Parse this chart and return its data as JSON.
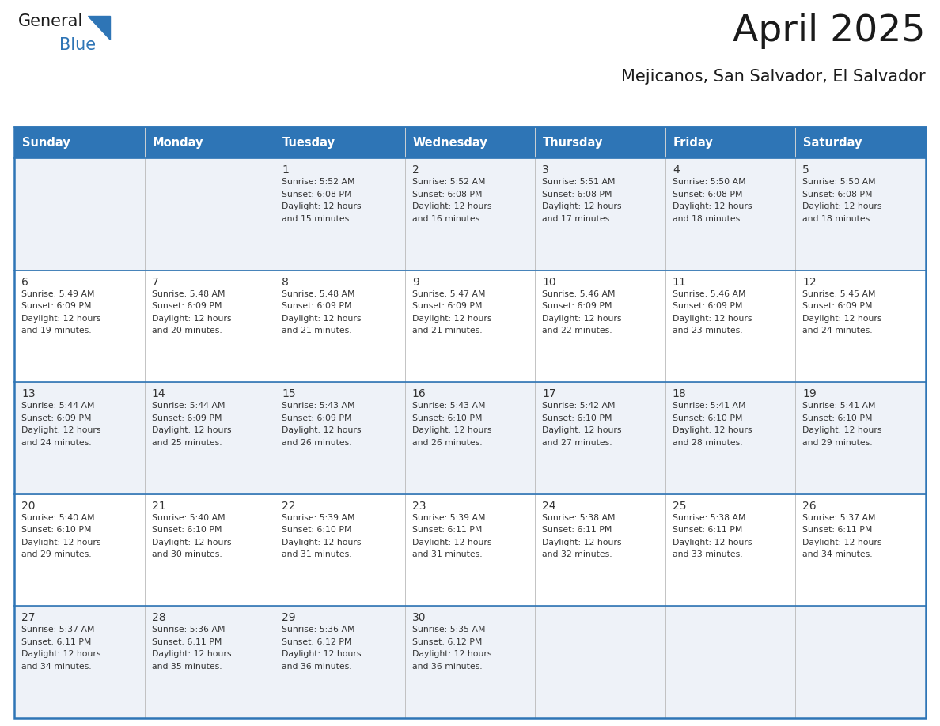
{
  "title": "April 2025",
  "subtitle": "Mejicanos, San Salvador, El Salvador",
  "days_of_week": [
    "Sunday",
    "Monday",
    "Tuesday",
    "Wednesday",
    "Thursday",
    "Friday",
    "Saturday"
  ],
  "header_bg": "#2E75B6",
  "header_text": "#FFFFFF",
  "row_bg_odd": "#EEF2F8",
  "row_bg_even": "#FFFFFF",
  "border_color": "#2E75B6",
  "cell_border_color": "#BBBBBB",
  "text_color": "#333333",
  "logo_blue_color": "#2E75B6",
  "calendar": [
    [
      {
        "day": 0,
        "sunrise": "",
        "sunset": "",
        "daylight": ""
      },
      {
        "day": 0,
        "sunrise": "",
        "sunset": "",
        "daylight": ""
      },
      {
        "day": 1,
        "sunrise": "5:52 AM",
        "sunset": "6:08 PM",
        "daylight": "12 hours\nand 15 minutes."
      },
      {
        "day": 2,
        "sunrise": "5:52 AM",
        "sunset": "6:08 PM",
        "daylight": "12 hours\nand 16 minutes."
      },
      {
        "day": 3,
        "sunrise": "5:51 AM",
        "sunset": "6:08 PM",
        "daylight": "12 hours\nand 17 minutes."
      },
      {
        "day": 4,
        "sunrise": "5:50 AM",
        "sunset": "6:08 PM",
        "daylight": "12 hours\nand 18 minutes."
      },
      {
        "day": 5,
        "sunrise": "5:50 AM",
        "sunset": "6:08 PM",
        "daylight": "12 hours\nand 18 minutes."
      }
    ],
    [
      {
        "day": 6,
        "sunrise": "5:49 AM",
        "sunset": "6:09 PM",
        "daylight": "12 hours\nand 19 minutes."
      },
      {
        "day": 7,
        "sunrise": "5:48 AM",
        "sunset": "6:09 PM",
        "daylight": "12 hours\nand 20 minutes."
      },
      {
        "day": 8,
        "sunrise": "5:48 AM",
        "sunset": "6:09 PM",
        "daylight": "12 hours\nand 21 minutes."
      },
      {
        "day": 9,
        "sunrise": "5:47 AM",
        "sunset": "6:09 PM",
        "daylight": "12 hours\nand 21 minutes."
      },
      {
        "day": 10,
        "sunrise": "5:46 AM",
        "sunset": "6:09 PM",
        "daylight": "12 hours\nand 22 minutes."
      },
      {
        "day": 11,
        "sunrise": "5:46 AM",
        "sunset": "6:09 PM",
        "daylight": "12 hours\nand 23 minutes."
      },
      {
        "day": 12,
        "sunrise": "5:45 AM",
        "sunset": "6:09 PM",
        "daylight": "12 hours\nand 24 minutes."
      }
    ],
    [
      {
        "day": 13,
        "sunrise": "5:44 AM",
        "sunset": "6:09 PM",
        "daylight": "12 hours\nand 24 minutes."
      },
      {
        "day": 14,
        "sunrise": "5:44 AM",
        "sunset": "6:09 PM",
        "daylight": "12 hours\nand 25 minutes."
      },
      {
        "day": 15,
        "sunrise": "5:43 AM",
        "sunset": "6:09 PM",
        "daylight": "12 hours\nand 26 minutes."
      },
      {
        "day": 16,
        "sunrise": "5:43 AM",
        "sunset": "6:10 PM",
        "daylight": "12 hours\nand 26 minutes."
      },
      {
        "day": 17,
        "sunrise": "5:42 AM",
        "sunset": "6:10 PM",
        "daylight": "12 hours\nand 27 minutes."
      },
      {
        "day": 18,
        "sunrise": "5:41 AM",
        "sunset": "6:10 PM",
        "daylight": "12 hours\nand 28 minutes."
      },
      {
        "day": 19,
        "sunrise": "5:41 AM",
        "sunset": "6:10 PM",
        "daylight": "12 hours\nand 29 minutes."
      }
    ],
    [
      {
        "day": 20,
        "sunrise": "5:40 AM",
        "sunset": "6:10 PM",
        "daylight": "12 hours\nand 29 minutes."
      },
      {
        "day": 21,
        "sunrise": "5:40 AM",
        "sunset": "6:10 PM",
        "daylight": "12 hours\nand 30 minutes."
      },
      {
        "day": 22,
        "sunrise": "5:39 AM",
        "sunset": "6:10 PM",
        "daylight": "12 hours\nand 31 minutes."
      },
      {
        "day": 23,
        "sunrise": "5:39 AM",
        "sunset": "6:11 PM",
        "daylight": "12 hours\nand 31 minutes."
      },
      {
        "day": 24,
        "sunrise": "5:38 AM",
        "sunset": "6:11 PM",
        "daylight": "12 hours\nand 32 minutes."
      },
      {
        "day": 25,
        "sunrise": "5:38 AM",
        "sunset": "6:11 PM",
        "daylight": "12 hours\nand 33 minutes."
      },
      {
        "day": 26,
        "sunrise": "5:37 AM",
        "sunset": "6:11 PM",
        "daylight": "12 hours\nand 34 minutes."
      }
    ],
    [
      {
        "day": 27,
        "sunrise": "5:37 AM",
        "sunset": "6:11 PM",
        "daylight": "12 hours\nand 34 minutes."
      },
      {
        "day": 28,
        "sunrise": "5:36 AM",
        "sunset": "6:11 PM",
        "daylight": "12 hours\nand 35 minutes."
      },
      {
        "day": 29,
        "sunrise": "5:36 AM",
        "sunset": "6:12 PM",
        "daylight": "12 hours\nand 36 minutes."
      },
      {
        "day": 30,
        "sunrise": "5:35 AM",
        "sunset": "6:12 PM",
        "daylight": "12 hours\nand 36 minutes."
      },
      {
        "day": 0,
        "sunrise": "",
        "sunset": "",
        "daylight": ""
      },
      {
        "day": 0,
        "sunrise": "",
        "sunset": "",
        "daylight": ""
      },
      {
        "day": 0,
        "sunrise": "",
        "sunset": "",
        "daylight": ""
      }
    ]
  ]
}
